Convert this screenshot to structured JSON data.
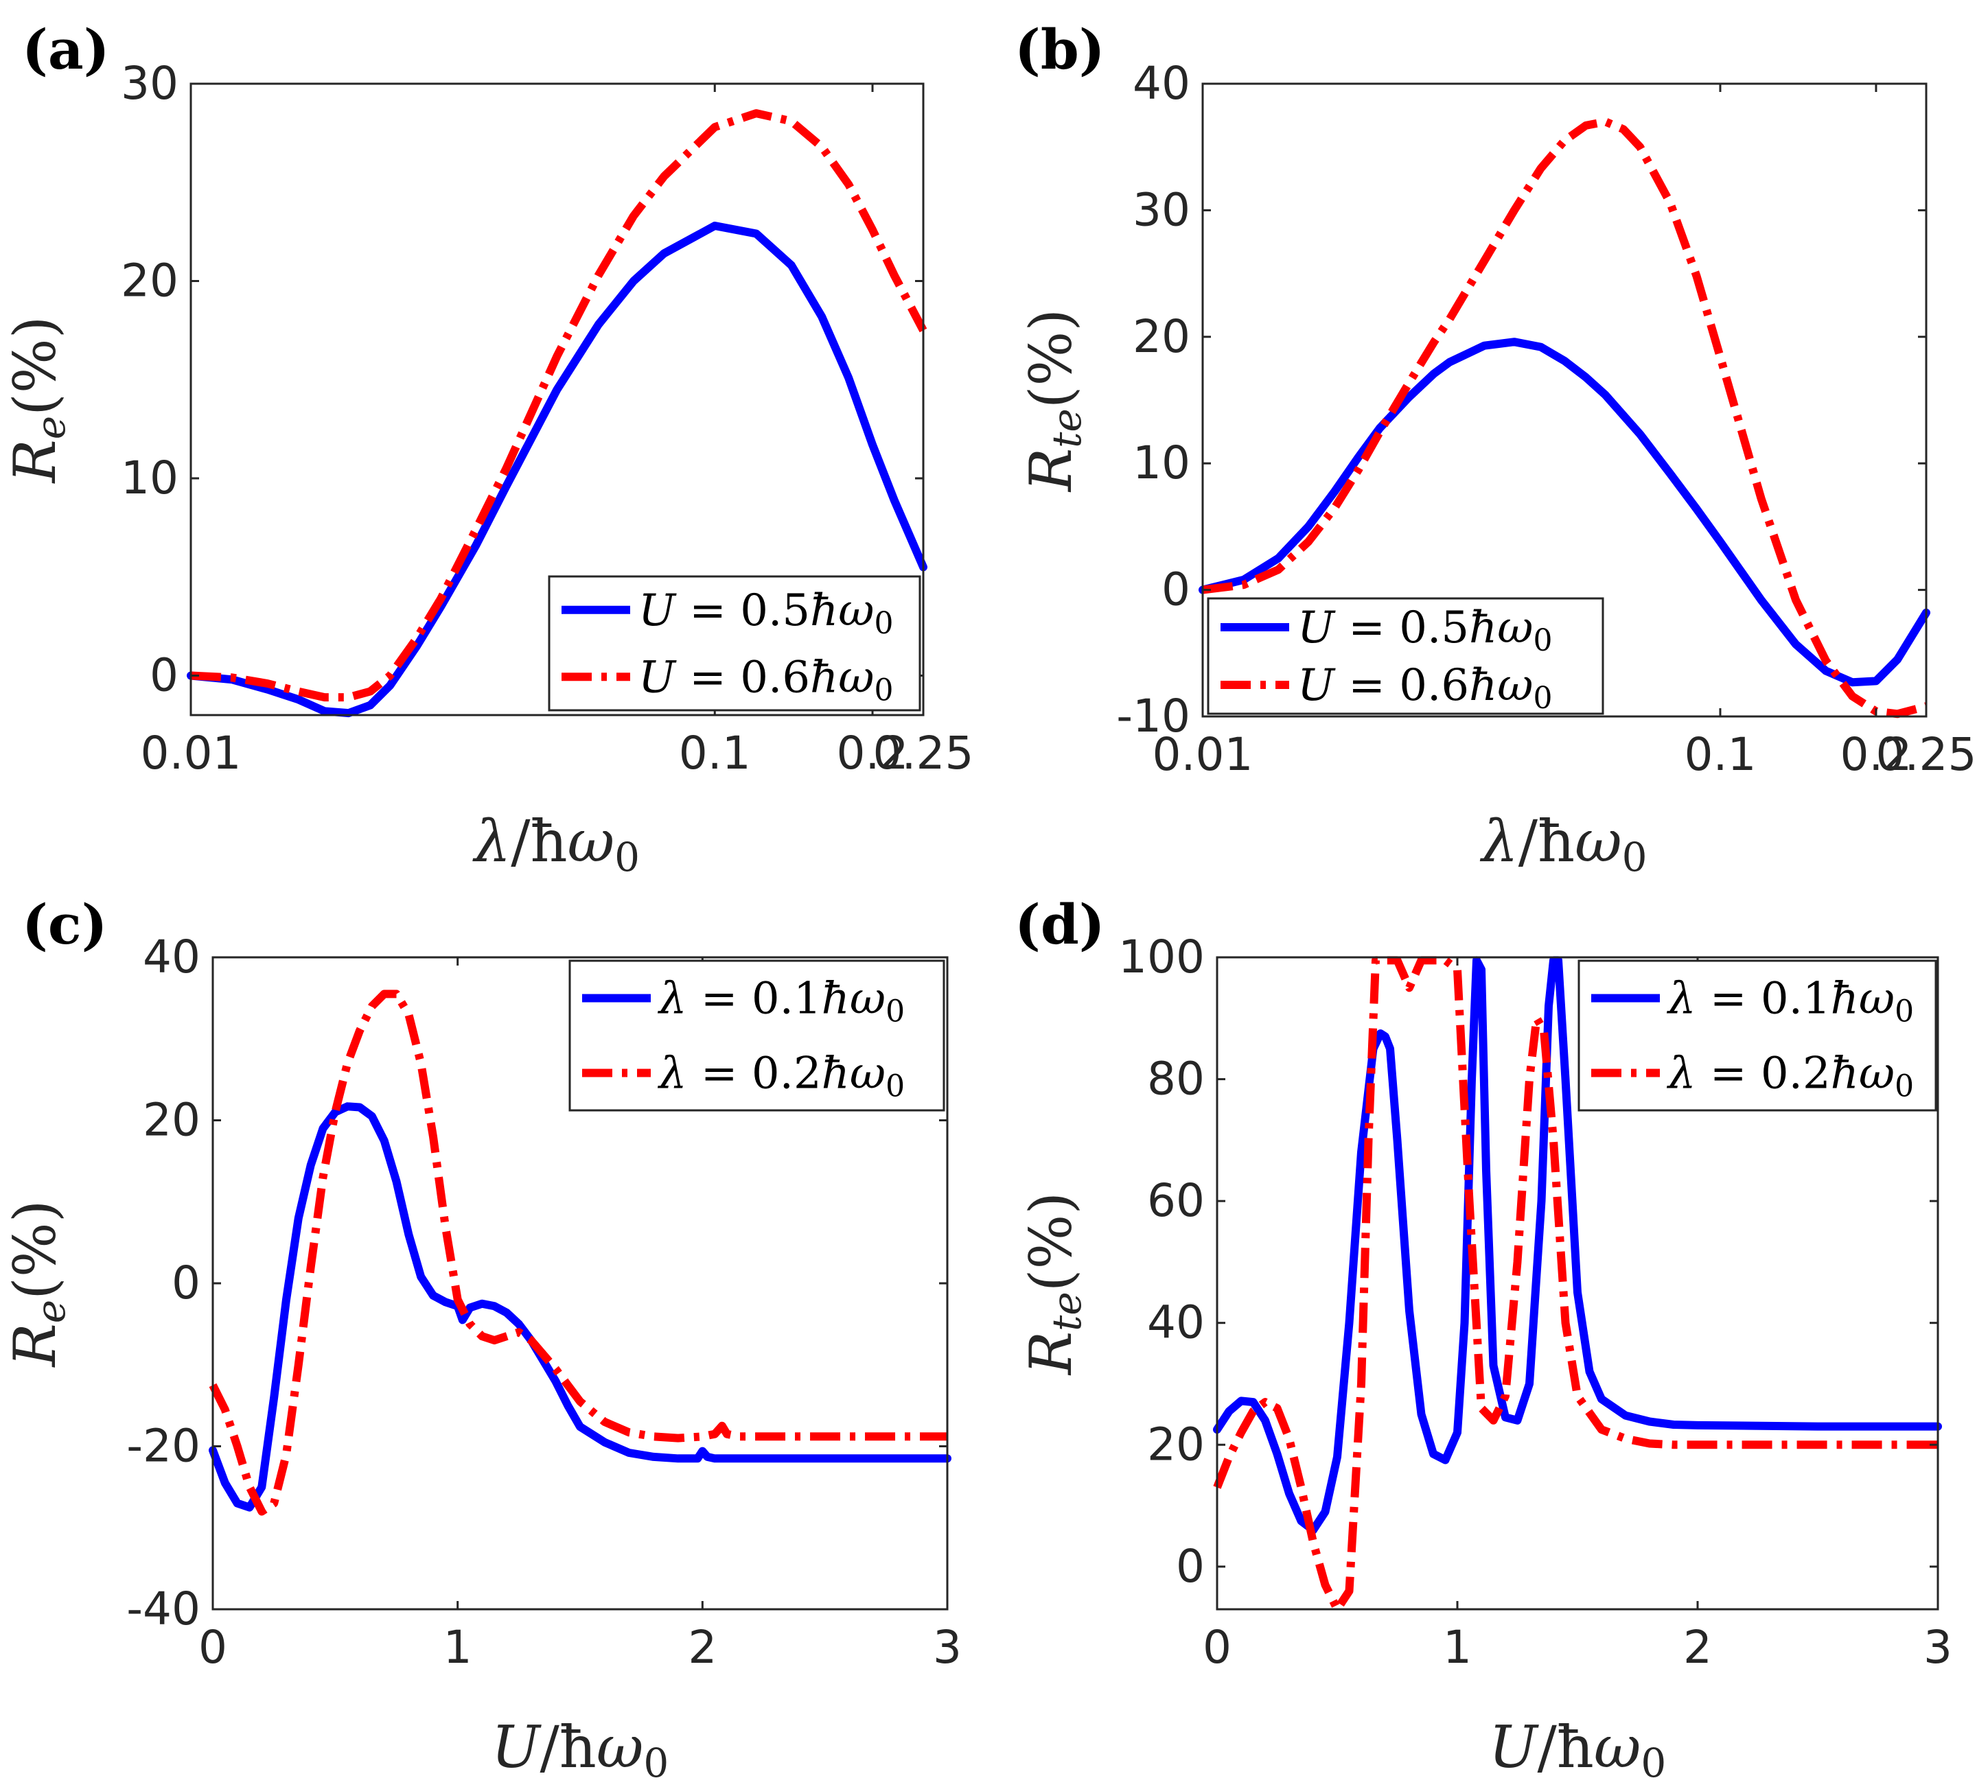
{
  "colors": {
    "series1": "#0000ff",
    "series2": "#ff0000",
    "axis": "#262626"
  },
  "chart_data": [
    {
      "panel_label": "(a)",
      "type": "line",
      "xscale": "log",
      "xlim": [
        0.01,
        0.25
      ],
      "ylim": [
        -2,
        30
      ],
      "xticks": [
        0.01,
        0.1,
        0.2,
        0.25
      ],
      "xtick_labels": [
        "0.01",
        "0.1",
        "0.2",
        "0.25"
      ],
      "yticks": [
        0,
        10,
        20,
        30
      ],
      "ytick_labels": [
        "0",
        "10",
        "20",
        "30"
      ],
      "xlabel": {
        "sym": "λ",
        "sep": "/",
        "hb": "ħ",
        "om": "ω",
        "sub": "0"
      },
      "ylabel": {
        "sym": "R",
        "sub": "e",
        "unit": "(%)"
      },
      "legend_placement": "bottom-right",
      "series": [
        {
          "name": "U = 0.5ħω0",
          "legend_parts": [
            "U",
            " = 0.5",
            "ħω",
            "0"
          ],
          "style": "solid",
          "x": [
            0.01,
            0.012,
            0.014,
            0.016,
            0.018,
            0.02,
            0.022,
            0.024,
            0.027,
            0.03,
            0.035,
            0.04,
            0.05,
            0.06,
            0.07,
            0.08,
            0.1,
            0.12,
            0.14,
            0.16,
            0.18,
            0.2,
            0.22,
            0.25
          ],
          "y": [
            0,
            -0.2,
            -0.7,
            -1.2,
            -1.8,
            -1.9,
            -1.5,
            -0.5,
            1.5,
            3.5,
            6.6,
            9.6,
            14.5,
            17.8,
            20.0,
            21.4,
            22.8,
            22.4,
            20.8,
            18.2,
            15.1,
            11.7,
            8.9,
            5.5
          ]
        },
        {
          "name": "U = 0.6ħω0",
          "legend_parts": [
            "U",
            " = 0.6",
            "ħω",
            "0"
          ],
          "style": "dashdot",
          "x": [
            0.01,
            0.012,
            0.014,
            0.016,
            0.018,
            0.02,
            0.022,
            0.024,
            0.027,
            0.03,
            0.035,
            0.04,
            0.05,
            0.06,
            0.07,
            0.08,
            0.1,
            0.12,
            0.14,
            0.16,
            0.18,
            0.2,
            0.22,
            0.25
          ],
          "y": [
            0,
            -0.1,
            -0.4,
            -0.8,
            -1.1,
            -1.1,
            -0.8,
            0,
            1.9,
            3.9,
            7.4,
            10.5,
            16.2,
            20.3,
            23.3,
            25.3,
            27.8,
            28.5,
            28.1,
            26.8,
            24.9,
            22.6,
            20.3,
            17.5
          ]
        }
      ]
    },
    {
      "panel_label": "(b)",
      "type": "line",
      "xscale": "log",
      "xlim": [
        0.01,
        0.25
      ],
      "ylim": [
        -10,
        40
      ],
      "xticks": [
        0.01,
        0.1,
        0.2,
        0.25
      ],
      "xtick_labels": [
        "0.01",
        "0.1",
        "0.2",
        "0.25"
      ],
      "yticks": [
        -10,
        0,
        10,
        20,
        30,
        40
      ],
      "ytick_labels": [
        "-10",
        "0",
        "10",
        "20",
        "30",
        "40"
      ],
      "xlabel": {
        "sym": "λ",
        "sep": "/",
        "hb": "ħ",
        "om": "ω",
        "sub": "0"
      },
      "ylabel": {
        "sym": "R",
        "sub": "te",
        "unit": "(%)"
      },
      "legend_placement": "bottom-left",
      "series": [
        {
          "name": "U = 0.5ħω0",
          "legend_parts": [
            "U",
            " = 0.5",
            "ħω",
            "0"
          ],
          "style": "solid",
          "x": [
            0.01,
            0.012,
            0.014,
            0.016,
            0.018,
            0.02,
            0.022,
            0.025,
            0.028,
            0.03,
            0.035,
            0.04,
            0.045,
            0.05,
            0.055,
            0.06,
            0.07,
            0.08,
            0.09,
            0.1,
            0.12,
            0.14,
            0.16,
            0.18,
            0.2,
            0.22,
            0.25
          ],
          "y": [
            0,
            0.8,
            2.5,
            5.0,
            7.8,
            10.5,
            12.8,
            15.2,
            17.1,
            18.0,
            19.3,
            19.6,
            19.2,
            18.1,
            16.8,
            15.4,
            12.3,
            9.2,
            6.4,
            3.8,
            -0.8,
            -4.3,
            -6.4,
            -7.3,
            -7.2,
            -5.5,
            -1.8
          ]
        },
        {
          "name": "U = 0.6ħω0",
          "legend_parts": [
            "U",
            " = 0.6",
            "ħω",
            "0"
          ],
          "style": "dashdot",
          "x": [
            0.01,
            0.012,
            0.014,
            0.016,
            0.018,
            0.02,
            0.022,
            0.025,
            0.028,
            0.03,
            0.035,
            0.04,
            0.045,
            0.05,
            0.055,
            0.06,
            0.065,
            0.07,
            0.08,
            0.09,
            0.1,
            0.12,
            0.14,
            0.16,
            0.18,
            0.2,
            0.22,
            0.24,
            0.25
          ],
          "y": [
            0,
            0.4,
            1.6,
            3.8,
            6.5,
            9.5,
            12.5,
            16.3,
            19.6,
            21.4,
            26.0,
            30.0,
            33.3,
            35.5,
            36.7,
            37.0,
            36.4,
            35.0,
            30.6,
            24.8,
            18.4,
            7.2,
            -0.8,
            -5.6,
            -8.4,
            -9.6,
            -9.8,
            -9.4,
            -9.2
          ]
        }
      ]
    },
    {
      "panel_label": "(c)",
      "type": "line",
      "xscale": "linear",
      "xlim": [
        0,
        3
      ],
      "ylim": [
        -40,
        40
      ],
      "xticks": [
        0,
        1,
        2,
        3
      ],
      "xtick_labels": [
        "0",
        "1",
        "2",
        "3"
      ],
      "yticks": [
        -40,
        -20,
        0,
        20,
        40
      ],
      "ytick_labels": [
        "-40",
        "-20",
        "0",
        "20",
        "40"
      ],
      "xlabel": {
        "sym": "U",
        "sep": "/",
        "hb": "ħ",
        "om": "ω",
        "sub": "0"
      },
      "ylabel": {
        "sym": "R",
        "sub": "e",
        "unit": "(%)"
      },
      "legend_placement": "top-right",
      "series": [
        {
          "name": "λ = 0.1ħω0",
          "legend_parts": [
            "λ",
            " = 0.1",
            "ħω",
            "0"
          ],
          "style": "solid",
          "x": [
            0,
            0.05,
            0.1,
            0.15,
            0.2,
            0.25,
            0.3,
            0.35,
            0.4,
            0.45,
            0.5,
            0.55,
            0.6,
            0.65,
            0.7,
            0.75,
            0.8,
            0.85,
            0.9,
            0.95,
            1.0,
            1.02,
            1.05,
            1.1,
            1.15,
            1.2,
            1.25,
            1.3,
            1.35,
            1.4,
            1.45,
            1.5,
            1.6,
            1.7,
            1.8,
            1.9,
            1.98,
            2.0,
            2.02,
            2.05,
            2.1,
            2.5,
            3.0
          ],
          "y": [
            -20.5,
            -24.5,
            -27,
            -27.5,
            -25,
            -14,
            -2,
            8,
            14.5,
            19,
            21,
            21.7,
            21.6,
            20.5,
            17.5,
            12.5,
            6,
            0.8,
            -1.5,
            -2.3,
            -2.8,
            -4.5,
            -3,
            -2.5,
            -2.8,
            -3.6,
            -5,
            -7,
            -9.5,
            -12,
            -15,
            -17.6,
            -19.5,
            -20.8,
            -21.3,
            -21.5,
            -21.5,
            -20.6,
            -21.3,
            -21.5,
            -21.5,
            -21.5,
            -21.5
          ]
        },
        {
          "name": "λ = 0.2ħω0",
          "legend_parts": [
            "λ",
            " = 0.2",
            "ħω",
            "0"
          ],
          "style": "dashdot",
          "x": [
            0,
            0.05,
            0.1,
            0.15,
            0.2,
            0.25,
            0.3,
            0.35,
            0.4,
            0.45,
            0.5,
            0.55,
            0.6,
            0.65,
            0.7,
            0.75,
            0.8,
            0.85,
            0.9,
            0.95,
            1.0,
            1.05,
            1.1,
            1.15,
            1.2,
            1.25,
            1.3,
            1.4,
            1.5,
            1.6,
            1.7,
            1.8,
            1.9,
            2.0,
            2.05,
            2.08,
            2.1,
            2.15,
            2.5,
            3.0
          ],
          "y": [
            -12.5,
            -15.5,
            -20,
            -25,
            -28,
            -27,
            -21,
            -10,
            2,
            13,
            21,
            27,
            31,
            34,
            35.5,
            35.5,
            33,
            27,
            18,
            7,
            -2,
            -5,
            -6.5,
            -7,
            -6.5,
            -6,
            -7,
            -10.5,
            -14.5,
            -17,
            -18.3,
            -18.8,
            -19,
            -18.8,
            -18.5,
            -17.5,
            -18.5,
            -18.8,
            -18.8,
            -18.8
          ]
        }
      ]
    },
    {
      "panel_label": "(d)",
      "type": "line",
      "xscale": "linear",
      "xlim": [
        0,
        3
      ],
      "ylim": [
        -7,
        100
      ],
      "xticks": [
        0,
        1,
        2,
        3
      ],
      "xtick_labels": [
        "0",
        "1",
        "2",
        "3"
      ],
      "yticks": [
        0,
        20,
        40,
        60,
        80,
        100
      ],
      "ytick_labels": [
        "0",
        "20",
        "40",
        "60",
        "80",
        "100"
      ],
      "xlabel": {
        "sym": "U",
        "sep": "/",
        "hb": "ħ",
        "om": "ω",
        "sub": "0"
      },
      "ylabel": {
        "sym": "R",
        "sub": "te",
        "unit": "(%)"
      },
      "legend_placement": "top-right",
      "series": [
        {
          "name": "λ = 0.1ħω0",
          "legend_parts": [
            "λ",
            " = 0.1",
            "ħω",
            "0"
          ],
          "style": "solid",
          "x": [
            0,
            0.05,
            0.1,
            0.15,
            0.2,
            0.25,
            0.3,
            0.35,
            0.4,
            0.45,
            0.5,
            0.55,
            0.6,
            0.65,
            0.68,
            0.7,
            0.72,
            0.75,
            0.8,
            0.85,
            0.9,
            0.95,
            1.0,
            1.03,
            1.06,
            1.08,
            1.1,
            1.12,
            1.15,
            1.2,
            1.25,
            1.3,
            1.35,
            1.38,
            1.4,
            1.42,
            1.45,
            1.5,
            1.55,
            1.6,
            1.7,
            1.8,
            1.9,
            2.0,
            2.5,
            3.0
          ],
          "y": [
            22.5,
            25.5,
            27.2,
            27,
            24,
            18.5,
            12,
            7.5,
            6,
            9,
            18,
            40,
            68,
            85,
            87.5,
            87,
            85,
            70,
            42,
            25,
            18.5,
            17.5,
            22,
            40,
            80,
            99.5,
            98,
            65,
            33,
            24.5,
            24,
            30,
            60,
            92,
            99.5,
            99.5,
            80,
            45,
            32,
            27.5,
            24.8,
            23.8,
            23.3,
            23.2,
            23,
            23
          ]
        },
        {
          "name": "λ = 0.2ħω0",
          "legend_parts": [
            "λ",
            " = 0.2",
            "ħω",
            "0"
          ],
          "style": "dashdot",
          "x": [
            0,
            0.05,
            0.1,
            0.15,
            0.2,
            0.25,
            0.3,
            0.35,
            0.4,
            0.45,
            0.5,
            0.55,
            0.6,
            0.63,
            0.66,
            0.7,
            0.75,
            0.8,
            0.85,
            0.9,
            0.95,
            1.0,
            1.05,
            1.1,
            1.15,
            1.2,
            1.25,
            1.3,
            1.33,
            1.36,
            1.4,
            1.45,
            1.5,
            1.6,
            1.7,
            1.8,
            1.9,
            2.0,
            2.5,
            3.0
          ],
          "y": [
            13,
            18,
            22,
            25.5,
            27,
            26,
            21,
            13,
            4,
            -3,
            -7,
            -4,
            30,
            70,
            99.5,
            99.5,
            99.5,
            95,
            99.5,
            99.5,
            99.5,
            98,
            60,
            26,
            24,
            28,
            50,
            80,
            90,
            88,
            70,
            40,
            28,
            22.5,
            21,
            20.2,
            20,
            20,
            20,
            20
          ]
        }
      ]
    }
  ]
}
